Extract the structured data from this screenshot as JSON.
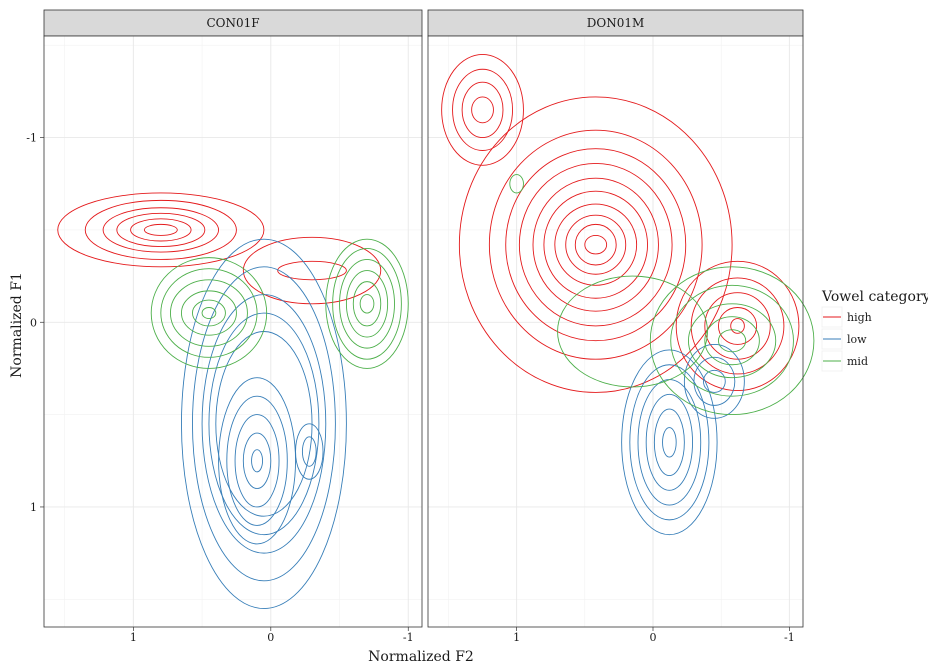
{
  "chart_data": {
    "type": "contour",
    "xlabel": "Normalized F2",
    "ylabel": "Normalized F1",
    "x_reversed": true,
    "y_reversed": true,
    "xlim": [
      1.65,
      -1.1
    ],
    "ylim": [
      -1.55,
      1.65
    ],
    "xticks": [
      1,
      0,
      -1
    ],
    "yticks": [
      -1,
      0,
      1
    ],
    "grid": true,
    "legend": {
      "title": "Vowel category",
      "position": "right",
      "items": [
        {
          "label": "high",
          "color": "#e41a1c"
        },
        {
          "label": "low",
          "color": "#377eb8"
        },
        {
          "label": "mid",
          "color": "#4daf4a"
        }
      ]
    },
    "panels": [
      {
        "title": "CON01F",
        "series": [
          {
            "name": "high",
            "clusters": [
              {
                "cx": 0.8,
                "cy": -0.5,
                "rx": [
                  0.75,
                  0.55,
                  0.42,
                  0.32,
                  0.22,
                  0.12
                ],
                "ry": [
                  0.2,
                  0.16,
                  0.12,
                  0.09,
                  0.06,
                  0.03
                ]
              },
              {
                "cx": -0.3,
                "cy": -0.28,
                "rx": [
                  0.5,
                  0.25
                ],
                "ry": [
                  0.18,
                  0.05
                ]
              }
            ]
          },
          {
            "name": "low",
            "clusters": [
              {
                "cx": 0.05,
                "cy": 0.55,
                "rx": [
                  0.6,
                  0.52,
                  0.45,
                  0.4,
                  0.35
                ],
                "ry": [
                  1.0,
                  0.85,
                  0.7,
                  0.6,
                  0.5
                ]
              },
              {
                "cx": 0.1,
                "cy": 0.75,
                "rx": [
                  0.28,
                  0.22,
                  0.16,
                  0.1,
                  0.04
                ],
                "ry": [
                  0.45,
                  0.35,
                  0.25,
                  0.15,
                  0.06
                ]
              },
              {
                "cx": -0.28,
                "cy": 0.7,
                "rx": [
                  0.1,
                  0.05
                ],
                "ry": [
                  0.15,
                  0.08
                ]
              }
            ]
          },
          {
            "name": "mid",
            "clusters": [
              {
                "cx": 0.45,
                "cy": -0.05,
                "rx": [
                  0.42,
                  0.35,
                  0.28,
                  0.2,
                  0.12,
                  0.05
                ],
                "ry": [
                  0.3,
                  0.24,
                  0.18,
                  0.12,
                  0.07,
                  0.03
                ]
              },
              {
                "cx": -0.7,
                "cy": -0.1,
                "rx": [
                  0.3,
                  0.25,
                  0.2,
                  0.15,
                  0.1,
                  0.05
                ],
                "ry": [
                  0.35,
                  0.3,
                  0.24,
                  0.18,
                  0.12,
                  0.05
                ]
              }
            ]
          }
        ]
      },
      {
        "title": "DON01M",
        "series": [
          {
            "name": "high",
            "clusters": [
              {
                "cx": 1.25,
                "cy": -1.15,
                "rx": [
                  0.3,
                  0.22,
                  0.15,
                  0.08
                ],
                "ry": [
                  0.3,
                  0.22,
                  0.15,
                  0.07
                ]
              },
              {
                "cx": 0.42,
                "cy": -0.42,
                "rx": [
                  1.0,
                  0.78,
                  0.66,
                  0.56,
                  0.46,
                  0.38,
                  0.3,
                  0.22,
                  0.15,
                  0.08
                ],
                "ry": [
                  0.8,
                  0.62,
                  0.52,
                  0.44,
                  0.36,
                  0.29,
                  0.22,
                  0.16,
                  0.11,
                  0.05
                ]
              },
              {
                "cx": -0.62,
                "cy": 0.02,
                "rx": [
                  0.45,
                  0.34,
                  0.24,
                  0.14,
                  0.05
                ],
                "ry": [
                  0.35,
                  0.26,
                  0.18,
                  0.1,
                  0.04
                ]
              }
            ]
          },
          {
            "name": "low",
            "clusters": [
              {
                "cx": -0.12,
                "cy": 0.65,
                "rx": [
                  0.35,
                  0.29,
                  0.23,
                  0.17,
                  0.11,
                  0.05
                ],
                "ry": [
                  0.5,
                  0.42,
                  0.34,
                  0.26,
                  0.18,
                  0.08
                ]
              },
              {
                "cx": -0.45,
                "cy": 0.32,
                "rx": [
                  0.22,
                  0.15,
                  0.08
                ],
                "ry": [
                  0.2,
                  0.13,
                  0.06
                ]
              }
            ]
          },
          {
            "name": "mid",
            "clusters": [
              {
                "cx": -0.58,
                "cy": 0.1,
                "rx": [
                  0.6,
                  0.45,
                  0.32,
                  0.2,
                  0.1
                ],
                "ry": [
                  0.4,
                  0.3,
                  0.2,
                  0.13,
                  0.06
                ]
              },
              {
                "cx": 0.15,
                "cy": 0.05,
                "rx": [
                  0.55
                ],
                "ry": [
                  0.3
                ]
              },
              {
                "cx": 1.0,
                "cy": -0.75,
                "rx": [
                  0.05
                ],
                "ry": [
                  0.05
                ]
              }
            ]
          }
        ]
      }
    ]
  }
}
